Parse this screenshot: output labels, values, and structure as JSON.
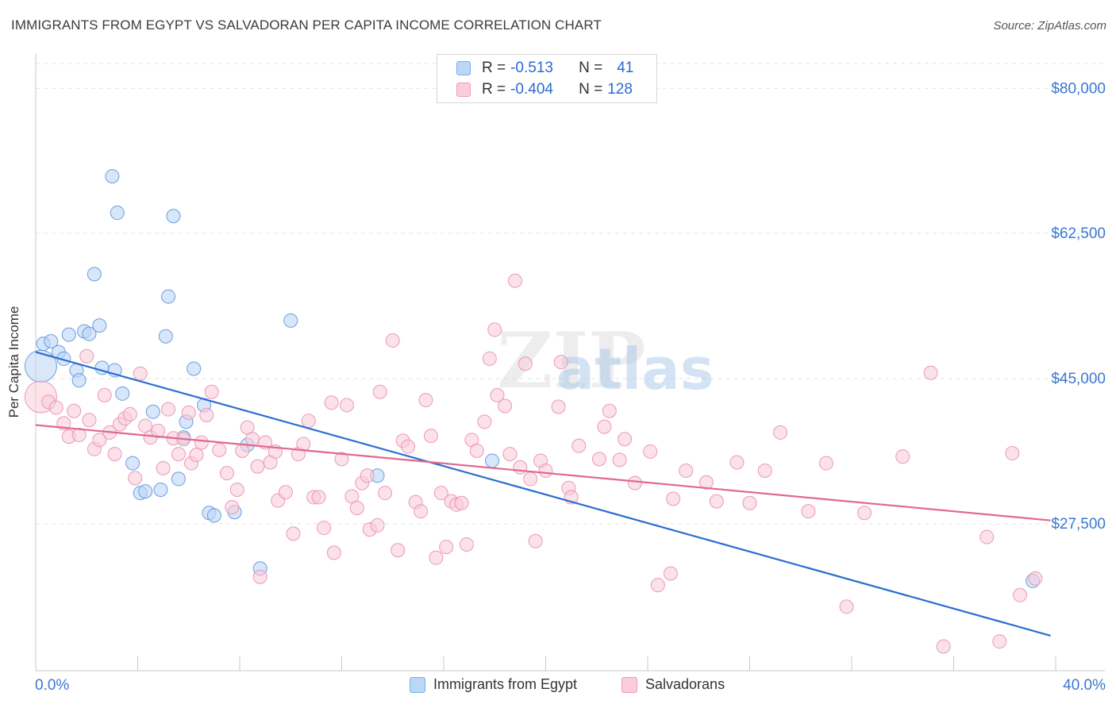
{
  "title": "IMMIGRANTS FROM EGYPT VS SALVADORAN PER CAPITA INCOME CORRELATION CHART",
  "source": "Source: ZipAtlas.com",
  "watermark": {
    "zip": "ZIP",
    "atlas": "atlas"
  },
  "legend_stats": [
    {
      "r_label": "R = ",
      "r_value": "-0.513",
      "n_label": "N = ",
      "n_value": "41",
      "color": "#7aaee8",
      "fill": "#bcd6f5"
    },
    {
      "r_label": "R = ",
      "r_value": "-0.404",
      "n_label": "N = ",
      "n_value": "128",
      "color": "#ef9ab7",
      "fill": "#f9cddb"
    }
  ],
  "chart_data": {
    "type": "scatter",
    "xlabel": "",
    "ylabel": "Per Capita Income",
    "xlim": [
      0,
      40
    ],
    "ylim": [
      11500,
      83000
    ],
    "x_tick_labels": [
      "0.0%",
      "40.0%"
    ],
    "y_ticks": [
      27500,
      45000,
      62500,
      80000
    ],
    "y_tick_labels": [
      "$27,500",
      "$45,000",
      "$62,500",
      "$80,000"
    ],
    "grid": true,
    "legend": "bottom-center",
    "series": [
      {
        "name": "Immigrants from Egypt",
        "color": "#5b96dd",
        "fill": "#bcd6f5",
        "trend": {
          "x": [
            0,
            39.8
          ],
          "y": [
            48200,
            14000
          ],
          "color": "#2a6fd0"
        },
        "points": [
          {
            "x": 0.2,
            "y": 46500,
            "big": true
          },
          {
            "x": 0.3,
            "y": 49200
          },
          {
            "x": 0.6,
            "y": 49500
          },
          {
            "x": 0.9,
            "y": 48200
          },
          {
            "x": 1.1,
            "y": 47400
          },
          {
            "x": 1.3,
            "y": 50300
          },
          {
            "x": 1.6,
            "y": 46000
          },
          {
            "x": 1.7,
            "y": 44800
          },
          {
            "x": 1.9,
            "y": 50700
          },
          {
            "x": 2.1,
            "y": 50400
          },
          {
            "x": 2.3,
            "y": 57600
          },
          {
            "x": 2.5,
            "y": 51400
          },
          {
            "x": 2.6,
            "y": 46300
          },
          {
            "x": 3.0,
            "y": 69400
          },
          {
            "x": 3.1,
            "y": 46000
          },
          {
            "x": 3.2,
            "y": 65000
          },
          {
            "x": 3.4,
            "y": 43200
          },
          {
            "x": 3.8,
            "y": 34800
          },
          {
            "x": 4.1,
            "y": 31200
          },
          {
            "x": 4.3,
            "y": 31400
          },
          {
            "x": 4.6,
            "y": 41000
          },
          {
            "x": 4.9,
            "y": 31600
          },
          {
            "x": 5.1,
            "y": 50100
          },
          {
            "x": 5.2,
            "y": 54900
          },
          {
            "x": 5.4,
            "y": 64600
          },
          {
            "x": 5.6,
            "y": 32900
          },
          {
            "x": 5.8,
            "y": 37900
          },
          {
            "x": 5.9,
            "y": 39800
          },
          {
            "x": 6.2,
            "y": 46200
          },
          {
            "x": 6.6,
            "y": 41800
          },
          {
            "x": 6.8,
            "y": 28800
          },
          {
            "x": 7.0,
            "y": 28500
          },
          {
            "x": 7.8,
            "y": 28900
          },
          {
            "x": 8.3,
            "y": 37000
          },
          {
            "x": 8.8,
            "y": 22100
          },
          {
            "x": 10.0,
            "y": 52000
          },
          {
            "x": 13.4,
            "y": 33300
          },
          {
            "x": 17.9,
            "y": 35100
          },
          {
            "x": 39.1,
            "y": 20600
          }
        ]
      },
      {
        "name": "Salvadorans",
        "color": "#ea8fb0",
        "fill": "#f9cddb",
        "trend": {
          "x": [
            0,
            39.8
          ],
          "y": [
            39400,
            27900
          ],
          "color": "#e0688f"
        },
        "points": [
          {
            "x": 0.2,
            "y": 42800,
            "big": true
          },
          {
            "x": 0.5,
            "y": 42200
          },
          {
            "x": 0.8,
            "y": 41500
          },
          {
            "x": 1.1,
            "y": 39600
          },
          {
            "x": 1.3,
            "y": 38000
          },
          {
            "x": 1.5,
            "y": 41100
          },
          {
            "x": 1.7,
            "y": 38200
          },
          {
            "x": 2.0,
            "y": 47700
          },
          {
            "x": 2.1,
            "y": 40000
          },
          {
            "x": 2.3,
            "y": 36500
          },
          {
            "x": 2.5,
            "y": 37600
          },
          {
            "x": 2.7,
            "y": 43000
          },
          {
            "x": 2.9,
            "y": 38500
          },
          {
            "x": 3.1,
            "y": 35900
          },
          {
            "x": 3.3,
            "y": 39500
          },
          {
            "x": 3.5,
            "y": 40200
          },
          {
            "x": 3.7,
            "y": 40700
          },
          {
            "x": 3.9,
            "y": 33000
          },
          {
            "x": 4.1,
            "y": 45600
          },
          {
            "x": 4.3,
            "y": 39300
          },
          {
            "x": 4.5,
            "y": 37900
          },
          {
            "x": 4.8,
            "y": 38700
          },
          {
            "x": 5.0,
            "y": 34200
          },
          {
            "x": 5.2,
            "y": 41300
          },
          {
            "x": 5.4,
            "y": 37800
          },
          {
            "x": 5.6,
            "y": 35900
          },
          {
            "x": 5.8,
            "y": 37700
          },
          {
            "x": 6.0,
            "y": 40900
          },
          {
            "x": 6.1,
            "y": 34800
          },
          {
            "x": 6.3,
            "y": 35800
          },
          {
            "x": 6.5,
            "y": 37300
          },
          {
            "x": 6.7,
            "y": 40600
          },
          {
            "x": 6.9,
            "y": 43400
          },
          {
            "x": 7.2,
            "y": 36400
          },
          {
            "x": 7.5,
            "y": 33600
          },
          {
            "x": 7.7,
            "y": 29500
          },
          {
            "x": 7.9,
            "y": 31600
          },
          {
            "x": 8.1,
            "y": 36300
          },
          {
            "x": 8.3,
            "y": 39100
          },
          {
            "x": 8.5,
            "y": 37700
          },
          {
            "x": 8.7,
            "y": 34400
          },
          {
            "x": 8.8,
            "y": 21100
          },
          {
            "x": 9.0,
            "y": 37300
          },
          {
            "x": 9.2,
            "y": 34900
          },
          {
            "x": 9.4,
            "y": 36200
          },
          {
            "x": 9.5,
            "y": 30300
          },
          {
            "x": 9.8,
            "y": 31300
          },
          {
            "x": 10.1,
            "y": 26300
          },
          {
            "x": 10.3,
            "y": 35900
          },
          {
            "x": 10.5,
            "y": 37100
          },
          {
            "x": 10.7,
            "y": 39900
          },
          {
            "x": 10.9,
            "y": 30700
          },
          {
            "x": 11.1,
            "y": 30700
          },
          {
            "x": 11.3,
            "y": 27000
          },
          {
            "x": 11.6,
            "y": 42100
          },
          {
            "x": 11.7,
            "y": 24000
          },
          {
            "x": 12.0,
            "y": 35300
          },
          {
            "x": 12.2,
            "y": 41800
          },
          {
            "x": 12.4,
            "y": 30800
          },
          {
            "x": 12.6,
            "y": 29400
          },
          {
            "x": 12.8,
            "y": 32400
          },
          {
            "x": 13.0,
            "y": 33300
          },
          {
            "x": 13.1,
            "y": 26800
          },
          {
            "x": 13.4,
            "y": 27300
          },
          {
            "x": 13.5,
            "y": 43400
          },
          {
            "x": 13.7,
            "y": 31200
          },
          {
            "x": 14.0,
            "y": 49600
          },
          {
            "x": 14.2,
            "y": 24300
          },
          {
            "x": 14.4,
            "y": 37500
          },
          {
            "x": 14.6,
            "y": 36800
          },
          {
            "x": 14.9,
            "y": 30100
          },
          {
            "x": 15.1,
            "y": 29000
          },
          {
            "x": 15.3,
            "y": 42400
          },
          {
            "x": 15.5,
            "y": 38100
          },
          {
            "x": 15.7,
            "y": 23400
          },
          {
            "x": 15.9,
            "y": 31200
          },
          {
            "x": 16.1,
            "y": 24700
          },
          {
            "x": 16.3,
            "y": 30200
          },
          {
            "x": 16.5,
            "y": 29800
          },
          {
            "x": 16.7,
            "y": 30000
          },
          {
            "x": 16.9,
            "y": 25000
          },
          {
            "x": 17.1,
            "y": 37600
          },
          {
            "x": 17.3,
            "y": 36300
          },
          {
            "x": 17.6,
            "y": 39800
          },
          {
            "x": 17.8,
            "y": 47400
          },
          {
            "x": 18.0,
            "y": 50900
          },
          {
            "x": 18.1,
            "y": 43000
          },
          {
            "x": 18.4,
            "y": 41700
          },
          {
            "x": 18.6,
            "y": 35900
          },
          {
            "x": 18.8,
            "y": 56800
          },
          {
            "x": 19.0,
            "y": 34300
          },
          {
            "x": 19.2,
            "y": 46800
          },
          {
            "x": 19.4,
            "y": 32900
          },
          {
            "x": 19.6,
            "y": 25400
          },
          {
            "x": 19.8,
            "y": 35100
          },
          {
            "x": 20.0,
            "y": 33900
          },
          {
            "x": 20.5,
            "y": 41600
          },
          {
            "x": 20.6,
            "y": 47000
          },
          {
            "x": 20.9,
            "y": 31800
          },
          {
            "x": 21.0,
            "y": 30700
          },
          {
            "x": 21.3,
            "y": 36900
          },
          {
            "x": 22.1,
            "y": 35300
          },
          {
            "x": 22.3,
            "y": 39200
          },
          {
            "x": 22.5,
            "y": 41100
          },
          {
            "x": 22.9,
            "y": 35200
          },
          {
            "x": 23.1,
            "y": 37700
          },
          {
            "x": 23.5,
            "y": 32400
          },
          {
            "x": 24.1,
            "y": 36200
          },
          {
            "x": 24.4,
            "y": 20100
          },
          {
            "x": 24.9,
            "y": 21500
          },
          {
            "x": 25.0,
            "y": 30500
          },
          {
            "x": 25.5,
            "y": 33900
          },
          {
            "x": 26.3,
            "y": 32500
          },
          {
            "x": 26.7,
            "y": 30200
          },
          {
            "x": 27.5,
            "y": 34900
          },
          {
            "x": 28.0,
            "y": 30000
          },
          {
            "x": 28.6,
            "y": 33900
          },
          {
            "x": 29.2,
            "y": 38500
          },
          {
            "x": 30.3,
            "y": 29000
          },
          {
            "x": 31.0,
            "y": 34800
          },
          {
            "x": 31.8,
            "y": 17500
          },
          {
            "x": 32.5,
            "y": 28800
          },
          {
            "x": 34.0,
            "y": 35600
          },
          {
            "x": 35.1,
            "y": 45700
          },
          {
            "x": 35.6,
            "y": 12700
          },
          {
            "x": 37.3,
            "y": 25900
          },
          {
            "x": 37.8,
            "y": 13300
          },
          {
            "x": 38.3,
            "y": 36000
          },
          {
            "x": 38.6,
            "y": 18900
          },
          {
            "x": 39.2,
            "y": 20900
          }
        ]
      }
    ]
  }
}
